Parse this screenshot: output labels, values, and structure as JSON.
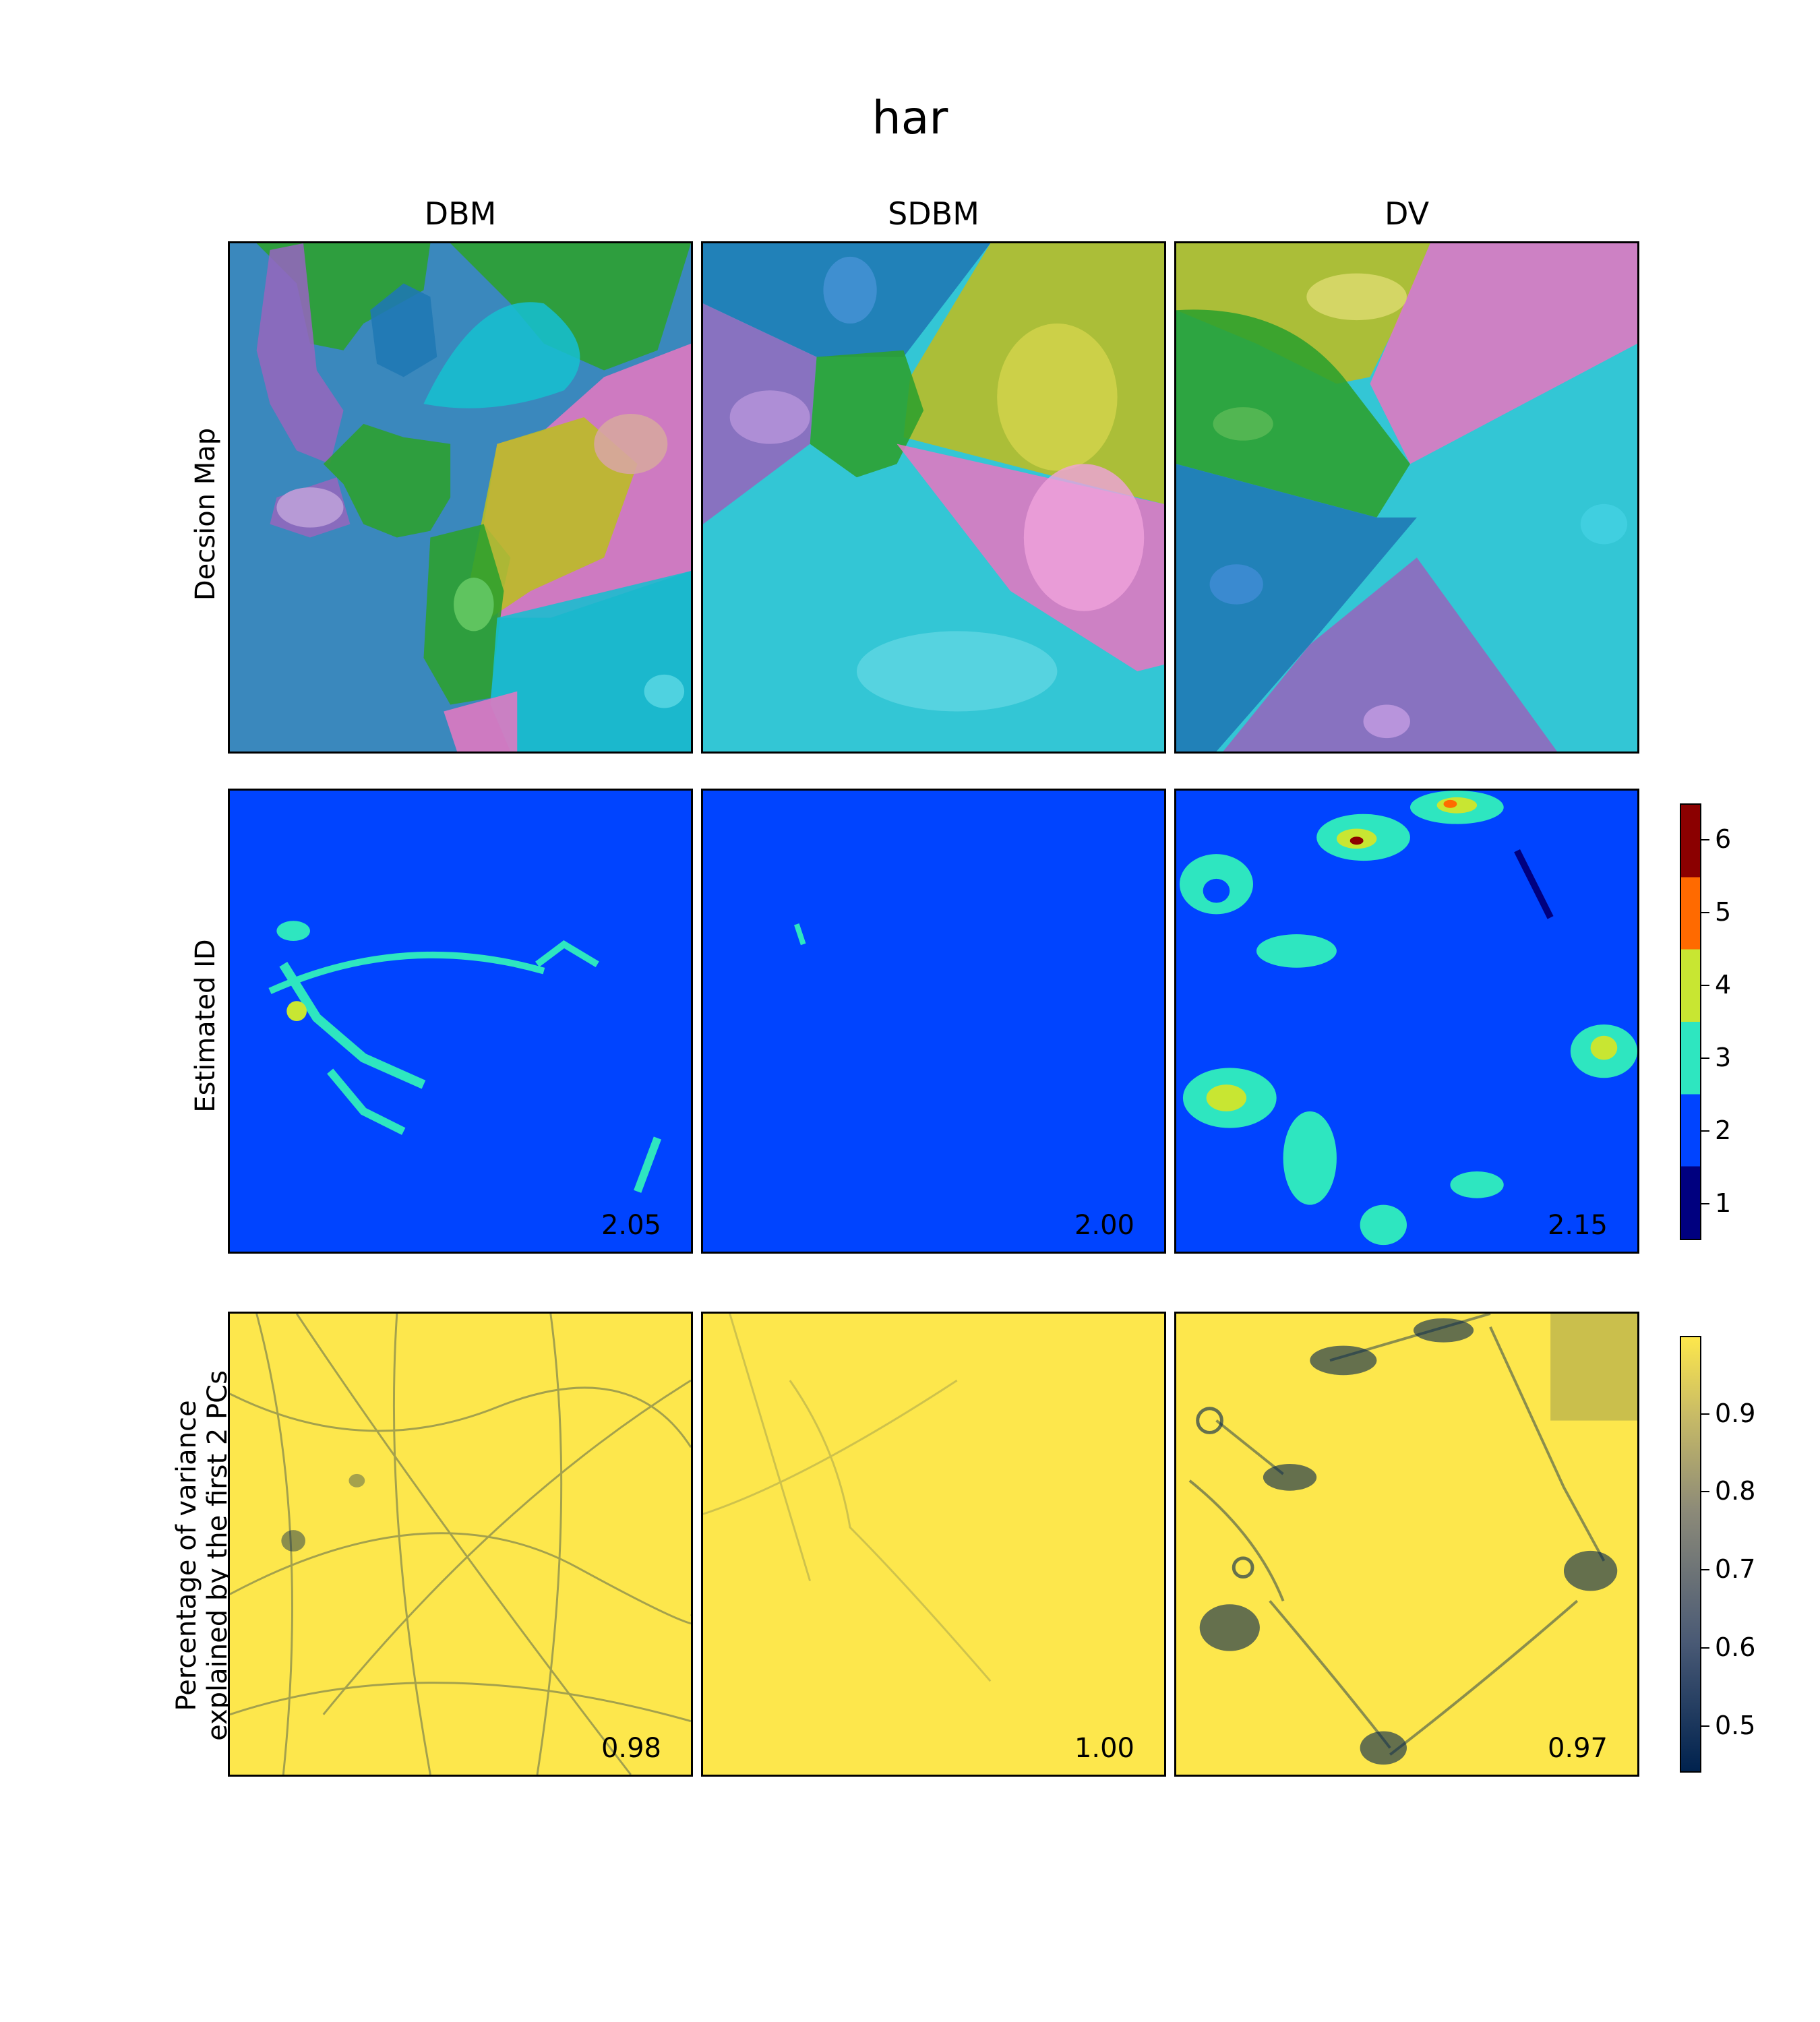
{
  "figure": {
    "title": "har"
  },
  "columns": [
    "DBM",
    "SDBM",
    "DV"
  ],
  "rows": {
    "decision_map": "Decsion Map",
    "estimated_id": "Estimated ID",
    "variance_line1": "Percentage of variance",
    "variance_line2": "explained by the first 2 PCs"
  },
  "colors": {
    "blue": "#1f77b4",
    "green": "#2ca02c",
    "cyan": "#17becf",
    "pink": "#e377c2",
    "purple": "#9467bd",
    "olive": "#bcbd22",
    "id_base": "#0044ff",
    "id_3": "#2ee6c0",
    "id_4": "#c8e632",
    "id_5": "#ff6a00",
    "id_6": "#8b0000",
    "id_1": "#00007f",
    "var_high": "#fde74c",
    "var_low": "#00224e"
  },
  "chart_data": [
    {
      "type": "heatmap",
      "title": "Decsion Map",
      "panels": [
        "DBM",
        "SDBM",
        "DV"
      ],
      "legend": "none"
    },
    {
      "type": "heatmap",
      "title": "Estimated ID",
      "panels": [
        "DBM",
        "SDBM",
        "DV"
      ],
      "panel_scores": [
        "2.05",
        "2.00",
        "2.15"
      ],
      "colorbar": {
        "ticks": [
          "1",
          "2",
          "3",
          "4",
          "5",
          "6"
        ],
        "range": [
          0.5,
          6.5
        ]
      }
    },
    {
      "type": "heatmap",
      "title": "Percentage of variance explained by the first 2 PCs",
      "panels": [
        "DBM",
        "SDBM",
        "DV"
      ],
      "panel_scores": [
        "0.98",
        "1.00",
        "0.97"
      ],
      "colorbar": {
        "ticks": [
          "0.9",
          "0.8",
          "0.7",
          "0.6",
          "0.5"
        ],
        "range": [
          0.44,
          1.0
        ]
      }
    }
  ]
}
